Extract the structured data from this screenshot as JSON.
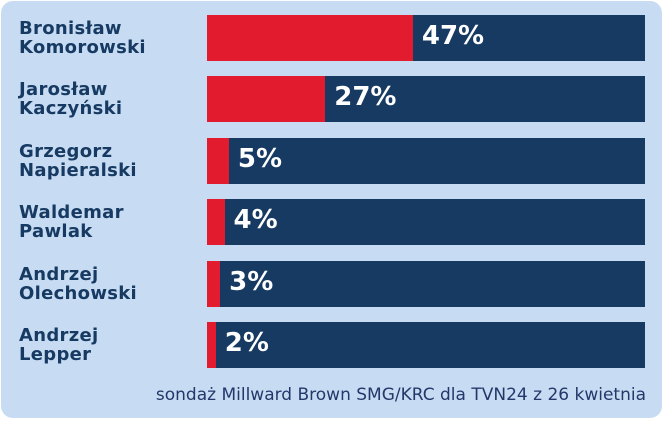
{
  "chart_data": {
    "type": "bar",
    "orientation": "horizontal",
    "categories": [
      "Bronisław Komorowski",
      "Jarosław Kaczyński",
      "Grzegorz Napieralski",
      "Waldemar Pawlak",
      "Andrzej Olechowski",
      "Andrzej Lepper"
    ],
    "values": [
      47,
      27,
      5,
      4,
      3,
      2
    ],
    "value_labels": [
      "47%",
      "27%",
      "5%",
      "4%",
      "3%",
      "2%"
    ],
    "xlim": [
      0,
      100
    ],
    "color": "#e31b2f",
    "track_color": "#173a63",
    "note": "sondaż Millward Brown SMG/KRC dla TVN24 z 26 kwietnia"
  }
}
